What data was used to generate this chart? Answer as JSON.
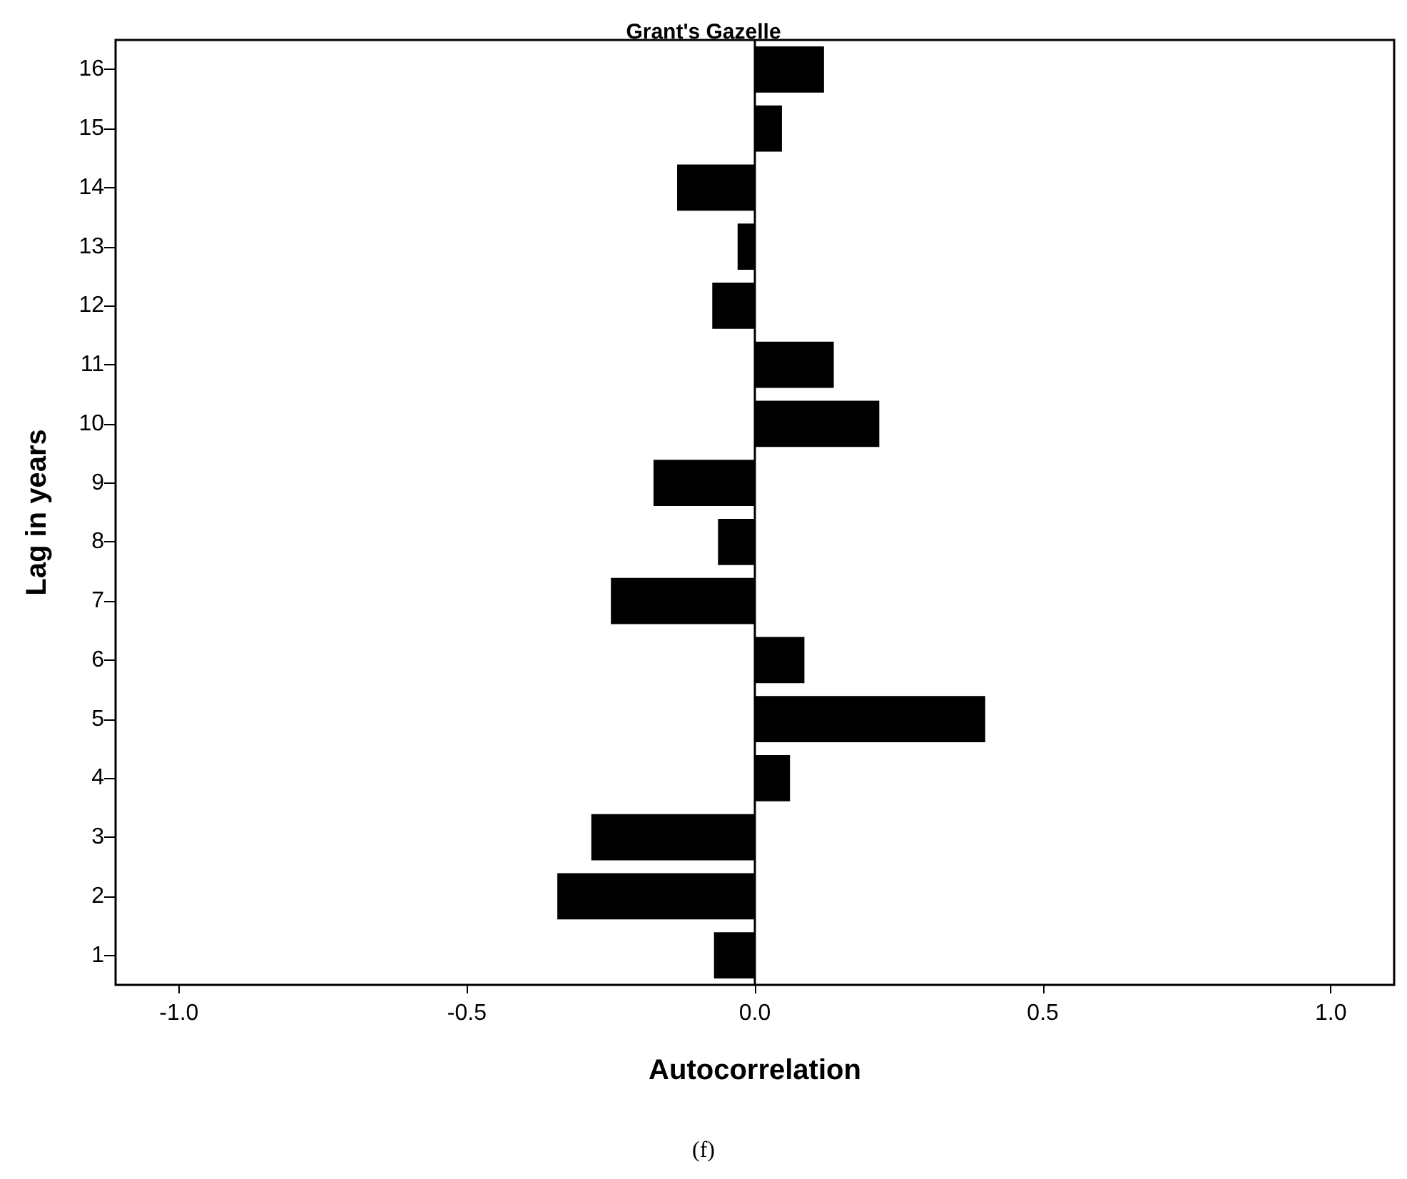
{
  "chart_data": {
    "type": "bar",
    "orientation": "horizontal",
    "title": "Grant's Gazelle",
    "xlabel": "Autocorrelation",
    "ylabel": "Lag in years",
    "categories": [
      "16",
      "15",
      "14",
      "13",
      "12",
      "11",
      "10",
      "9",
      "8",
      "7",
      "6",
      "5",
      "4",
      "3",
      "2",
      "1"
    ],
    "values": [
      0.12,
      0.047,
      -0.135,
      -0.03,
      -0.074,
      0.137,
      0.216,
      -0.176,
      -0.064,
      -0.25,
      0.086,
      0.4,
      0.061,
      -0.284,
      -0.343,
      -0.071
    ],
    "color": "#000000",
    "xlim": [
      -1.11,
      1.11
    ],
    "xticks": [
      {
        "value": -1,
        "label": "-1.0"
      },
      {
        "value": -0.5,
        "label": "-0.5"
      },
      {
        "value": 0,
        "label": "0.0"
      },
      {
        "value": 0.5,
        "label": "0.5"
      },
      {
        "value": 1,
        "label": "1.0"
      }
    ],
    "annotations": [
      "(f)"
    ]
  }
}
